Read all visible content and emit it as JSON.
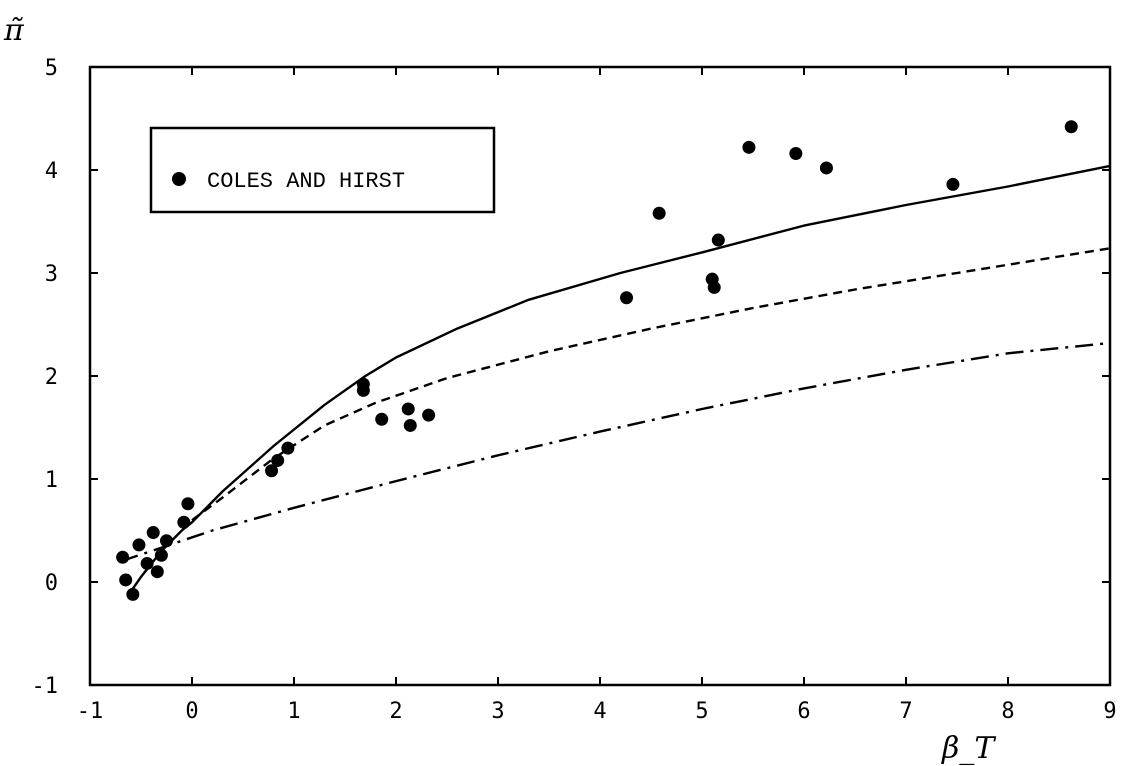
{
  "chart_data": {
    "type": "scatter",
    "title": "",
    "xlabel": "β_T",
    "ylabel": "π̃",
    "xlim": [
      -1,
      9
    ],
    "ylim": [
      -1,
      5
    ],
    "xticks": [
      -1,
      0,
      1,
      2,
      3,
      4,
      5,
      6,
      7,
      8,
      9
    ],
    "yticks": [
      -1,
      0,
      1,
      2,
      3,
      4,
      5
    ],
    "xtick_labels": [
      "-1",
      "0",
      "1",
      "2",
      "3",
      "4",
      "5",
      "6",
      "7",
      "8",
      "9"
    ],
    "ytick_labels": [
      "-1",
      "0",
      "1",
      "2",
      "3",
      "4",
      "5"
    ],
    "grid": false,
    "legend": {
      "position": "top-left",
      "entries": [
        "COLES AND HIRST"
      ]
    },
    "series": [
      {
        "name": "COLES AND HIRST",
        "kind": "points",
        "marker": "filled-circle",
        "x": [
          -0.68,
          -0.65,
          -0.58,
          -0.52,
          -0.44,
          -0.38,
          -0.34,
          -0.3,
          -0.25,
          -0.08,
          -0.04,
          0.78,
          0.84,
          0.94,
          1.68,
          1.68,
          1.86,
          2.12,
          2.14,
          2.32,
          4.26,
          4.58,
          5.1,
          5.12,
          5.16,
          5.46,
          5.92,
          6.22,
          7.46,
          8.62
        ],
        "y": [
          0.24,
          0.02,
          -0.12,
          0.36,
          0.18,
          0.48,
          0.1,
          0.26,
          0.4,
          0.58,
          0.76,
          1.08,
          1.18,
          1.3,
          1.92,
          1.86,
          1.58,
          1.68,
          1.52,
          1.62,
          2.76,
          3.58,
          2.94,
          2.86,
          3.32,
          4.22,
          4.16,
          4.02,
          3.86,
          4.42
        ]
      },
      {
        "kind": "line",
        "style": "solid",
        "x": [
          -0.62,
          -0.5,
          -0.3,
          -0.1,
          0.0,
          0.3,
          0.8,
          1.3,
          1.7,
          2.0,
          2.6,
          3.3,
          4.2,
          5.0,
          6.0,
          7.0,
          8.0,
          9.0
        ],
        "y": [
          -0.12,
          0.05,
          0.3,
          0.5,
          0.58,
          0.88,
          1.32,
          1.72,
          2.0,
          2.18,
          2.46,
          2.74,
          3.0,
          3.2,
          3.46,
          3.66,
          3.84,
          4.04
        ]
      },
      {
        "kind": "line",
        "style": "dashed",
        "x": [
          0.0,
          0.3,
          0.8,
          1.3,
          1.8,
          2.5,
          3.5,
          4.5,
          5.5,
          6.5,
          7.5,
          8.5,
          9.0
        ],
        "y": [
          0.6,
          0.82,
          1.2,
          1.52,
          1.74,
          1.98,
          2.24,
          2.46,
          2.66,
          2.84,
          3.0,
          3.16,
          3.24
        ]
      },
      {
        "kind": "line",
        "style": "dash-dot",
        "x": [
          -0.7,
          -0.4,
          -0.1,
          0.2,
          1.0,
          2.0,
          3.0,
          4.0,
          5.0,
          6.0,
          7.0,
          8.0,
          9.0
        ],
        "y": [
          0.2,
          0.3,
          0.4,
          0.5,
          0.72,
          0.98,
          1.23,
          1.46,
          1.68,
          1.88,
          2.06,
          2.22,
          2.32
        ]
      }
    ]
  }
}
